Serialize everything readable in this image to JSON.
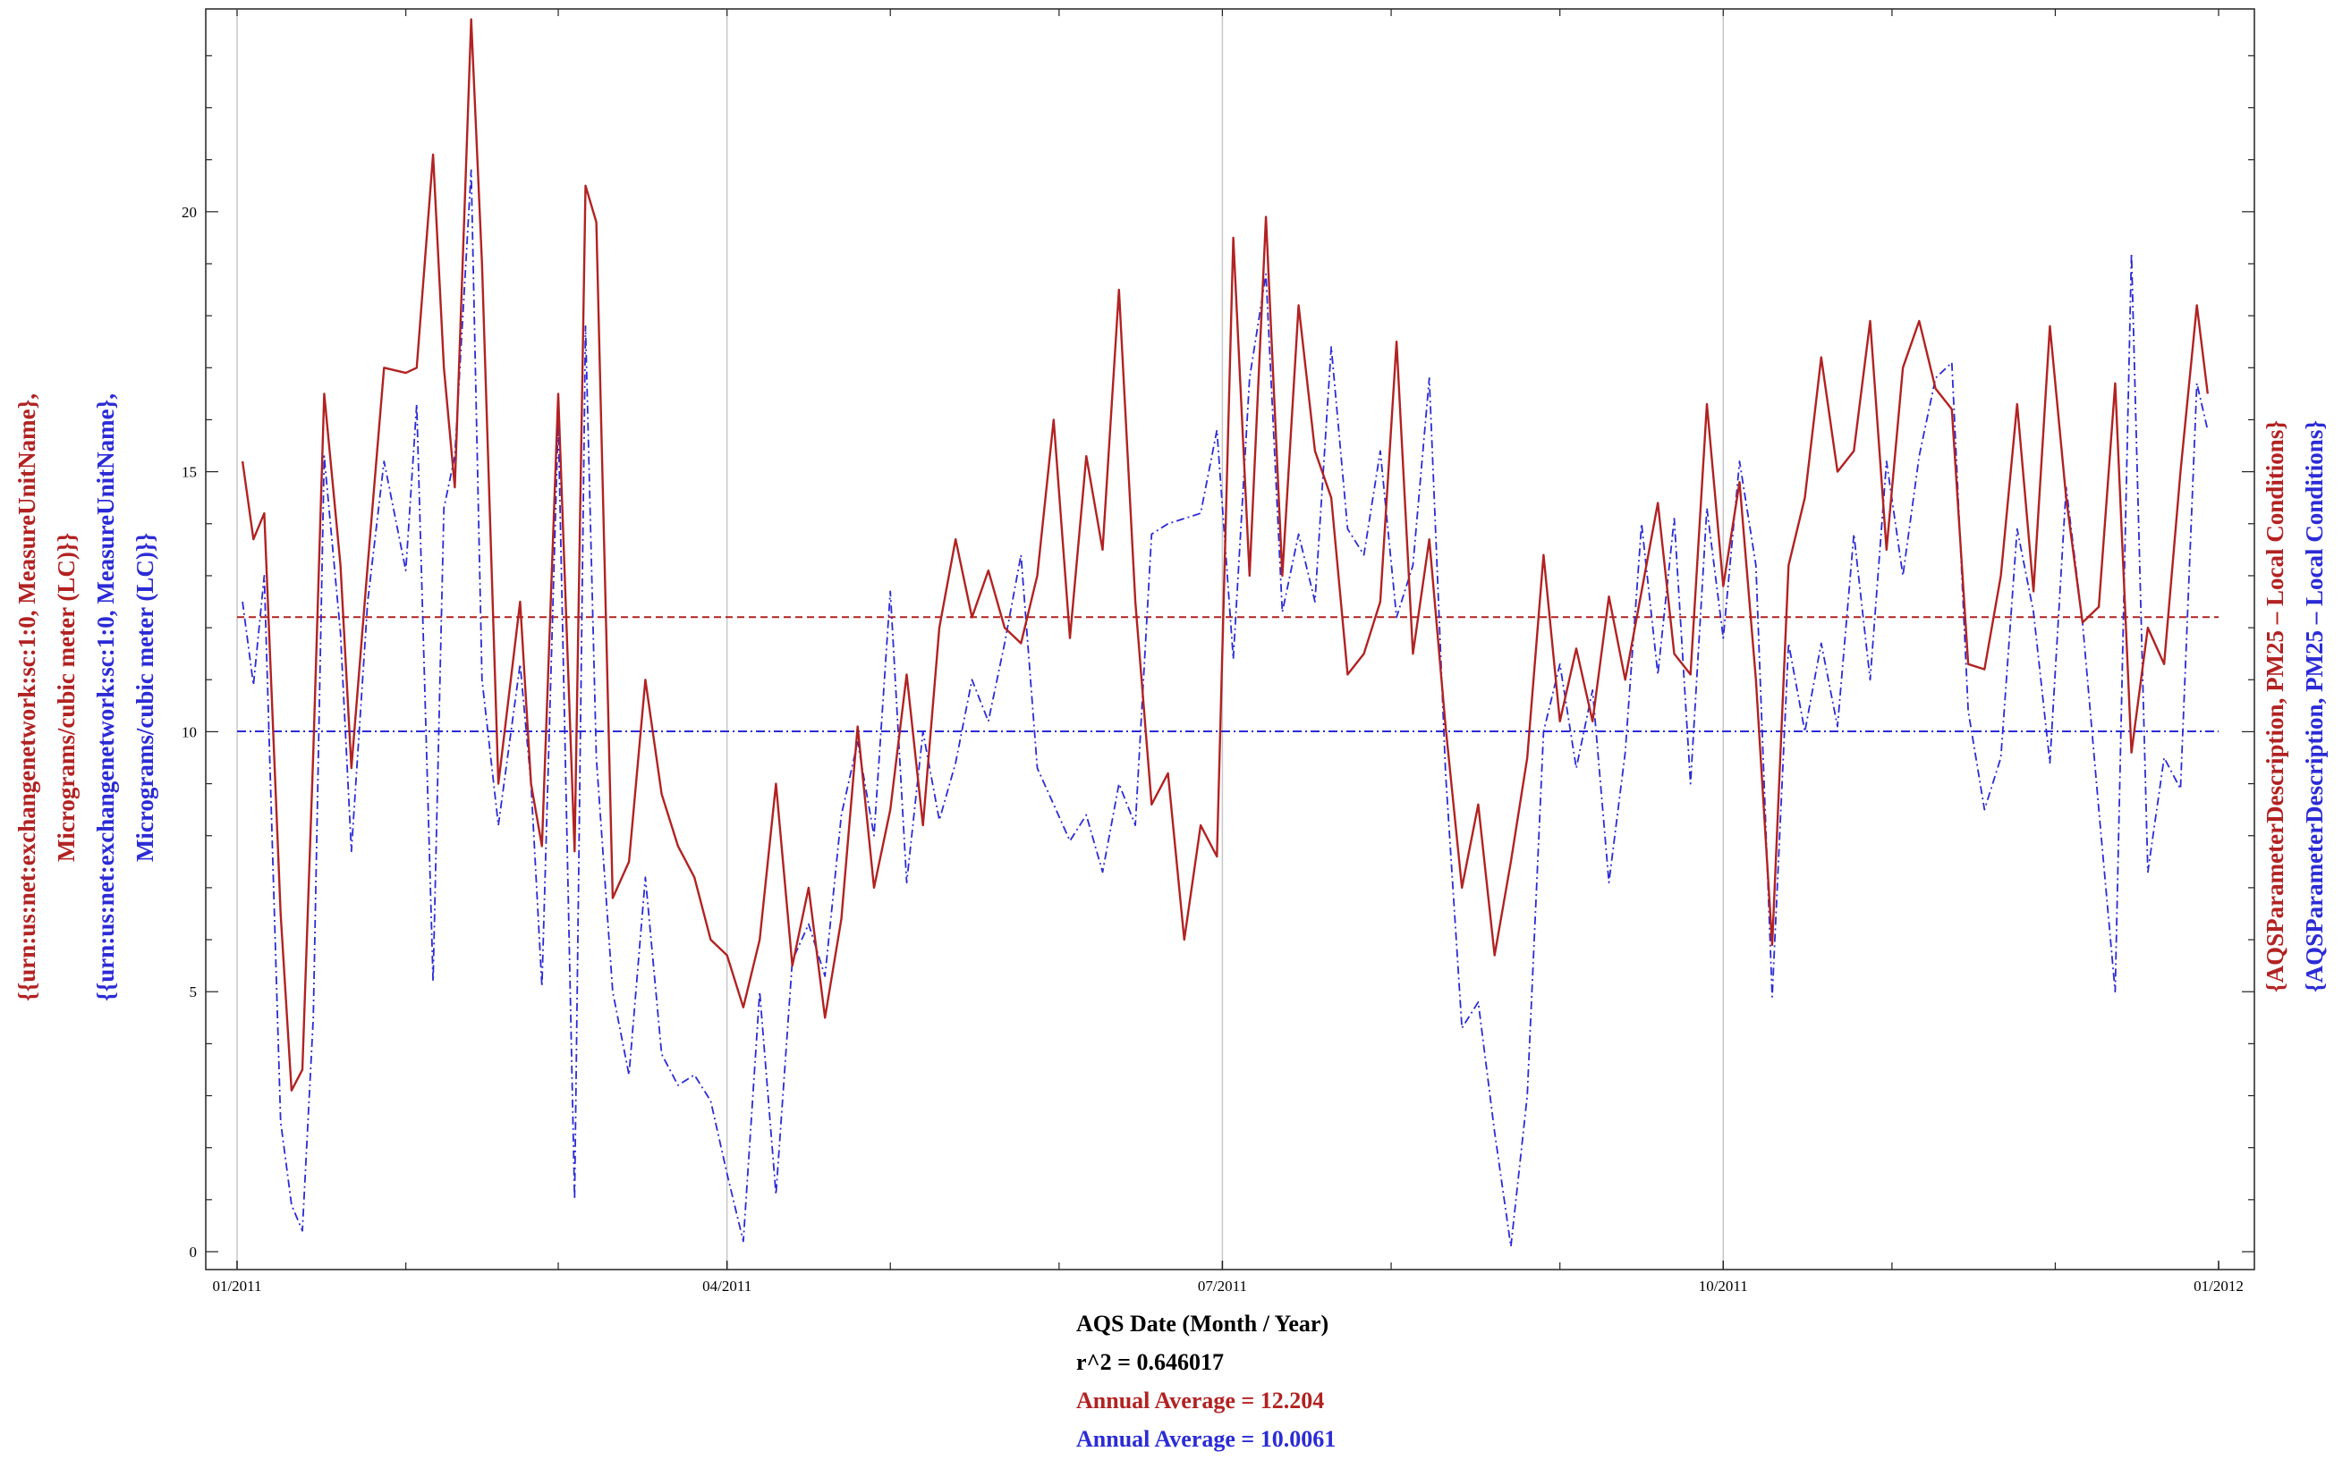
{
  "chart_data": {
    "type": "line",
    "xlabel": "AQS Date (Month / Year)",
    "x_ticks": [
      "01/2011",
      "04/2011",
      "07/2011",
      "10/2011",
      "01/2012"
    ],
    "xlim": [
      "2011-01-01",
      "2011-12-31"
    ],
    "ylim": [
      0,
      23.9
    ],
    "y_ticks": [
      0,
      5,
      10,
      15,
      20
    ],
    "grid": "vertical",
    "y_left_labels": [
      {
        "line1": "{{urn:us:net:exchangenetwork:sc:1:0, MeasureUnitName},",
        "line2": "Micrograms/cubic meter  (LC)}}",
        "color": "#b22222"
      },
      {
        "line1": "{{urn:us:net:exchangenetwork:sc:1:0, MeasureUnitName},",
        "line2": "Micrograms/cubic meter  (LC)}}",
        "color": "#2b2bd6"
      }
    ],
    "y_right_labels": [
      {
        "text": "{AQSParameterDescription, PM25 – Local Conditions}",
        "color": "#b22222"
      },
      {
        "text": "{AQSParameterDescription, PM25 – Local Conditions}",
        "color": "#2b2bd6"
      }
    ],
    "series": [
      {
        "color": "#b22222",
        "style": "solid",
        "average": 12.204,
        "x": [
          "2011-01-02",
          "2011-01-04",
          "2011-01-06",
          "2011-01-09",
          "2011-01-11",
          "2011-01-13",
          "2011-01-15",
          "2011-01-17",
          "2011-01-20",
          "2011-01-22",
          "2011-01-25",
          "2011-01-28",
          "2011-02-01",
          "2011-02-03",
          "2011-02-06",
          "2011-02-08",
          "2011-02-10",
          "2011-02-13",
          "2011-02-15",
          "2011-02-18",
          "2011-02-22",
          "2011-02-24",
          "2011-02-26",
          "2011-03-01",
          "2011-03-04",
          "2011-03-06",
          "2011-03-08",
          "2011-03-11",
          "2011-03-14",
          "2011-03-17",
          "2011-03-20",
          "2011-03-23",
          "2011-03-26",
          "2011-03-29",
          "2011-04-01",
          "2011-04-04",
          "2011-04-07",
          "2011-04-10",
          "2011-04-13",
          "2011-04-16",
          "2011-04-19",
          "2011-04-22",
          "2011-04-25",
          "2011-04-28",
          "2011-05-01",
          "2011-05-04",
          "2011-05-07",
          "2011-05-10",
          "2011-05-13",
          "2011-05-16",
          "2011-05-19",
          "2011-05-22",
          "2011-05-25",
          "2011-05-28",
          "2011-05-31",
          "2011-06-03",
          "2011-06-06",
          "2011-06-09",
          "2011-06-12",
          "2011-06-15",
          "2011-06-18",
          "2011-06-21",
          "2011-06-24",
          "2011-06-27",
          "2011-06-30",
          "2011-07-03",
          "2011-07-06",
          "2011-07-09",
          "2011-07-12",
          "2011-07-15",
          "2011-07-18",
          "2011-07-21",
          "2011-07-24",
          "2011-07-27",
          "2011-07-30",
          "2011-08-02",
          "2011-08-05",
          "2011-08-08",
          "2011-08-11",
          "2011-08-14",
          "2011-08-17",
          "2011-08-20",
          "2011-08-23",
          "2011-08-26",
          "2011-08-29",
          "2011-09-01",
          "2011-09-04",
          "2011-09-07",
          "2011-09-10",
          "2011-09-13",
          "2011-09-16",
          "2011-09-19",
          "2011-09-22",
          "2011-09-25",
          "2011-09-28",
          "2011-10-01",
          "2011-10-04",
          "2011-10-07",
          "2011-10-10",
          "2011-10-13",
          "2011-10-16",
          "2011-10-19",
          "2011-10-22",
          "2011-10-25",
          "2011-10-28",
          "2011-10-31",
          "2011-11-03",
          "2011-11-06",
          "2011-11-09",
          "2011-11-12",
          "2011-11-15",
          "2011-11-18",
          "2011-11-21",
          "2011-11-24",
          "2011-11-27",
          "2011-11-30",
          "2011-12-03",
          "2011-12-06",
          "2011-12-09",
          "2011-12-12",
          "2011-12-15",
          "2011-12-18",
          "2011-12-21",
          "2011-12-24",
          "2011-12-27",
          "2011-12-29"
        ],
        "y": [
          15.2,
          13.7,
          14.2,
          6.5,
          3.1,
          3.5,
          9.6,
          16.5,
          13.2,
          9.3,
          13.2,
          17.0,
          16.9,
          17.0,
          21.1,
          17.0,
          14.7,
          23.7,
          19.0,
          9.0,
          12.5,
          9.0,
          7.8,
          16.5,
          7.7,
          20.5,
          19.8,
          6.8,
          7.5,
          11.0,
          8.8,
          7.8,
          7.2,
          6.0,
          5.7,
          4.7,
          6.0,
          9.0,
          5.5,
          7.0,
          4.5,
          6.4,
          10.1,
          7.0,
          8.5,
          11.1,
          8.2,
          12.0,
          13.7,
          12.2,
          13.1,
          12.0,
          11.7,
          13.0,
          16.0,
          11.8,
          15.3,
          13.5,
          18.5,
          12.5,
          8.6,
          9.2,
          6.0,
          8.2,
          7.6,
          19.5,
          13.0,
          19.9,
          13.0,
          18.2,
          15.4,
          14.5,
          11.1,
          11.5,
          12.5,
          17.5,
          11.5,
          13.7,
          10.1,
          7.0,
          8.6,
          5.7,
          7.5,
          9.5,
          13.4,
          10.2,
          11.6,
          10.2,
          12.6,
          11.0,
          12.7,
          14.4,
          11.5,
          11.1,
          16.3,
          12.8,
          14.8,
          11.0,
          5.9,
          13.2,
          14.5,
          17.2,
          15.0,
          15.4,
          17.9,
          13.5,
          17.0,
          17.9,
          16.6,
          16.2,
          11.3,
          11.2,
          13.0,
          16.3,
          12.7,
          17.8,
          14.5,
          12.1,
          12.4,
          16.7,
          9.6,
          12.0,
          11.3,
          15.0,
          18.2,
          16.5
        ]
      },
      {
        "color": "#2b2bd6",
        "style": "dash-dot",
        "average": 10.0061,
        "x": [
          "2011-01-02",
          "2011-01-04",
          "2011-01-06",
          "2011-01-09",
          "2011-01-11",
          "2011-01-13",
          "2011-01-15",
          "2011-01-17",
          "2011-01-20",
          "2011-01-22",
          "2011-01-25",
          "2011-01-28",
          "2011-02-01",
          "2011-02-03",
          "2011-02-06",
          "2011-02-08",
          "2011-02-10",
          "2011-02-13",
          "2011-02-15",
          "2011-02-18",
          "2011-02-22",
          "2011-02-24",
          "2011-02-26",
          "2011-03-01",
          "2011-03-04",
          "2011-03-06",
          "2011-03-08",
          "2011-03-11",
          "2011-03-14",
          "2011-03-17",
          "2011-03-20",
          "2011-03-23",
          "2011-03-26",
          "2011-03-29",
          "2011-04-01",
          "2011-04-04",
          "2011-04-07",
          "2011-04-10",
          "2011-04-13",
          "2011-04-16",
          "2011-04-19",
          "2011-04-22",
          "2011-04-25",
          "2011-04-28",
          "2011-05-01",
          "2011-05-04",
          "2011-05-07",
          "2011-05-10",
          "2011-05-13",
          "2011-05-16",
          "2011-05-19",
          "2011-05-22",
          "2011-05-25",
          "2011-05-28",
          "2011-05-31",
          "2011-06-03",
          "2011-06-06",
          "2011-06-09",
          "2011-06-12",
          "2011-06-15",
          "2011-06-18",
          "2011-06-21",
          "2011-06-24",
          "2011-06-27",
          "2011-06-30",
          "2011-07-03",
          "2011-07-06",
          "2011-07-09",
          "2011-07-12",
          "2011-07-15",
          "2011-07-18",
          "2011-07-21",
          "2011-07-24",
          "2011-07-27",
          "2011-07-30",
          "2011-08-02",
          "2011-08-05",
          "2011-08-08",
          "2011-08-11",
          "2011-08-14",
          "2011-08-17",
          "2011-08-20",
          "2011-08-23",
          "2011-08-26",
          "2011-08-29",
          "2011-09-01",
          "2011-09-04",
          "2011-09-07",
          "2011-09-10",
          "2011-09-13",
          "2011-09-16",
          "2011-09-19",
          "2011-09-22",
          "2011-09-25",
          "2011-09-28",
          "2011-10-01",
          "2011-10-04",
          "2011-10-07",
          "2011-10-10",
          "2011-10-13",
          "2011-10-16",
          "2011-10-19",
          "2011-10-22",
          "2011-10-25",
          "2011-10-28",
          "2011-10-31",
          "2011-11-03",
          "2011-11-06",
          "2011-11-09",
          "2011-11-12",
          "2011-11-15",
          "2011-11-18",
          "2011-11-21",
          "2011-11-24",
          "2011-11-27",
          "2011-11-30",
          "2011-12-03",
          "2011-12-06",
          "2011-12-09",
          "2011-12-12",
          "2011-12-15",
          "2011-12-18",
          "2011-12-21",
          "2011-12-24",
          "2011-12-27",
          "2011-12-29"
        ],
        "y": [
          12.5,
          10.9,
          13.0,
          2.5,
          0.9,
          0.4,
          4.5,
          15.3,
          11.9,
          7.7,
          12.5,
          15.2,
          13.1,
          16.3,
          5.2,
          14.3,
          15.3,
          20.8,
          11.0,
          8.2,
          11.3,
          9.0,
          5.1,
          16.0,
          1.0,
          17.8,
          9.5,
          5.0,
          3.4,
          7.2,
          3.8,
          3.2,
          3.4,
          2.9,
          1.5,
          0.2,
          5.0,
          1.1,
          5.6,
          6.3,
          5.3,
          8.4,
          9.8,
          8.0,
          12.7,
          7.1,
          10.0,
          8.3,
          9.4,
          11.0,
          10.2,
          11.7,
          13.4,
          9.3,
          8.6,
          7.9,
          8.4,
          7.3,
          9.0,
          8.2,
          13.8,
          14.0,
          14.1,
          14.2,
          15.8,
          11.4,
          16.8,
          18.8,
          12.3,
          13.8,
          12.5,
          17.4,
          13.9,
          13.4,
          15.4,
          12.2,
          13.2,
          16.8,
          9.2,
          4.3,
          4.8,
          2.3,
          0.1,
          3.0,
          10.0,
          11.3,
          9.3,
          10.8,
          7.1,
          9.6,
          14.0,
          11.1,
          14.1,
          9.0,
          14.3,
          11.8,
          15.2,
          13.2,
          4.9,
          11.7,
          10.0,
          11.7,
          10.1,
          13.8,
          11.0,
          15.2,
          13.0,
          15.3,
          16.8,
          17.1,
          10.4,
          8.5,
          9.5,
          13.9,
          12.3,
          9.4,
          14.7,
          12.1,
          8.5,
          5.0,
          19.2,
          7.3,
          9.5,
          8.9,
          16.7,
          15.8
        ]
      }
    ],
    "annotations": {
      "r2": "r^2 = 0.646017",
      "avg_red": "Annual Average = 12.204",
      "avg_blue": "Annual Average = 10.0061"
    }
  }
}
